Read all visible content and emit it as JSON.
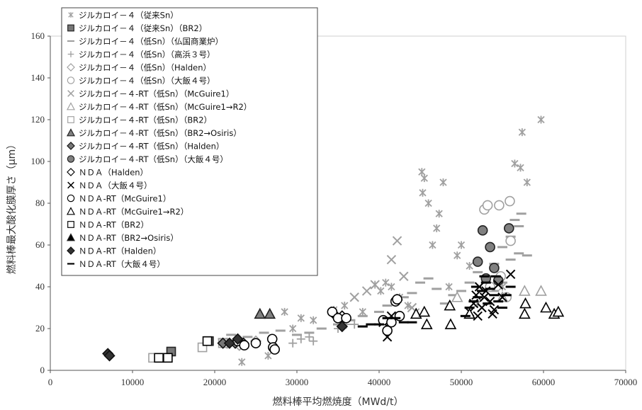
{
  "chart_data": {
    "type": "scatter",
    "xlabel": "燃料棒平均燃焼度（MWd/t）",
    "ylabel": "燃料棒最大酸化膜厚さ（μm）",
    "xlim": [
      0,
      70000
    ],
    "ylim": [
      0,
      160
    ],
    "xticks": [
      0,
      10000,
      20000,
      30000,
      40000,
      50000,
      60000,
      70000
    ],
    "yticks": [
      0,
      20,
      40,
      60,
      80,
      100,
      120,
      140,
      160
    ],
    "xtick_labels": [
      "0",
      "10000",
      "20000",
      "30000",
      "40000",
      "50000",
      "60000",
      "70000"
    ],
    "ytick_labels": [
      "0",
      "20",
      "40",
      "60",
      "80",
      "100",
      "120",
      "140",
      "160"
    ],
    "grid": false,
    "legend_position": "top-left",
    "series": [
      {
        "name": "ジルカロイ－４（従来Sn）",
        "marker": "asterisk",
        "color": "#a0a0a0",
        "points": [
          [
            23300,
            4
          ],
          [
            26500,
            7
          ],
          [
            28500,
            28
          ],
          [
            29500,
            20
          ],
          [
            30500,
            25
          ],
          [
            32000,
            24
          ],
          [
            34500,
            29
          ],
          [
            35800,
            31
          ],
          [
            38000,
            28
          ],
          [
            39500,
            41
          ],
          [
            40200,
            38
          ],
          [
            40800,
            42
          ],
          [
            41500,
            40
          ],
          [
            42500,
            35
          ],
          [
            43500,
            31
          ],
          [
            44500,
            28
          ],
          [
            45200,
            95
          ],
          [
            45500,
            92
          ],
          [
            45300,
            85
          ],
          [
            46000,
            80
          ],
          [
            46500,
            60
          ],
          [
            47000,
            68
          ],
          [
            47300,
            75
          ],
          [
            47800,
            90
          ],
          [
            48500,
            40
          ],
          [
            49500,
            55
          ],
          [
            50000,
            60
          ],
          [
            51000,
            50
          ],
          [
            52000,
            32
          ],
          [
            55000,
            40
          ],
          [
            56500,
            99
          ],
          [
            57200,
            97
          ],
          [
            57400,
            114
          ],
          [
            58000,
            90
          ],
          [
            59700,
            120
          ]
        ]
      },
      {
        "name": "ジルカロイ－４（従来Sn）（BR2）",
        "marker": "square",
        "color": "#777777",
        "filled": true,
        "points": [
          [
            14700,
            9
          ],
          [
            19300,
            14
          ]
        ]
      },
      {
        "name": "ジルカロイ－４（低Sn）（仏国商業炉）",
        "marker": "dash",
        "color": "#a0a0a0",
        "points": [
          [
            21000,
            15
          ],
          [
            22000,
            17
          ],
          [
            24000,
            16
          ],
          [
            26000,
            18
          ],
          [
            28000,
            19
          ],
          [
            30000,
            17
          ],
          [
            31500,
            18
          ],
          [
            33000,
            20
          ],
          [
            35000,
            22
          ],
          [
            36500,
            24
          ],
          [
            38000,
            26
          ],
          [
            40000,
            28
          ],
          [
            41000,
            31
          ],
          [
            42000,
            33
          ],
          [
            43000,
            35
          ],
          [
            44000,
            37
          ],
          [
            45000,
            42
          ],
          [
            46000,
            44
          ],
          [
            47000,
            39
          ],
          [
            48000,
            32
          ],
          [
            49000,
            36
          ],
          [
            50000,
            38
          ],
          [
            51000,
            42
          ],
          [
            52000,
            47
          ],
          [
            53000,
            45
          ],
          [
            54000,
            51
          ],
          [
            55000,
            59
          ],
          [
            56000,
            64
          ],
          [
            56500,
            72
          ],
          [
            57000,
            69
          ],
          [
            57300,
            75
          ],
          [
            57000,
            56
          ],
          [
            56000,
            53
          ],
          [
            58000,
            55
          ],
          [
            55000,
            42
          ],
          [
            54000,
            38
          ]
        ]
      },
      {
        "name": "ジルカロイ－４（低Sn）（高浜３号）",
        "marker": "plus",
        "color": "#a0a0a0",
        "points": [
          [
            29500,
            13
          ],
          [
            30500,
            15
          ],
          [
            31500,
            16
          ],
          [
            32000,
            14
          ],
          [
            35000,
            20
          ],
          [
            36000,
            22
          ],
          [
            37000,
            22
          ]
        ]
      },
      {
        "name": "ジルカロイ－４（低Sn）（Halden）",
        "marker": "diamond",
        "color": "#a0a0a0",
        "points": [
          [
            21500,
            13
          ],
          [
            23000,
            12
          ],
          [
            25000,
            14
          ]
        ]
      },
      {
        "name": "ジルカロイ－４（低Sn）（大飯４号）",
        "marker": "circle",
        "color": "#a0a0a0",
        "points": [
          [
            52800,
            77
          ],
          [
            53200,
            79
          ],
          [
            54600,
            79
          ],
          [
            55900,
            81
          ],
          [
            56000,
            62
          ],
          [
            54800,
            45
          ],
          [
            55500,
            35
          ],
          [
            53500,
            40
          ]
        ]
      },
      {
        "name": "ジルカロイ－４-RT（低Sn）（McGuire1）",
        "marker": "x",
        "color": "#a0a0a0",
        "points": [
          [
            37000,
            35
          ],
          [
            38500,
            38
          ],
          [
            39500,
            41
          ],
          [
            41500,
            53
          ],
          [
            42200,
            62
          ],
          [
            43000,
            45
          ],
          [
            44000,
            30
          ]
        ]
      },
      {
        "name": "ジルカロイ－４-RT（低Sn）（McGuire1→R2）",
        "marker": "triangle",
        "color": "#a0a0a0",
        "points": [
          [
            49500,
            35
          ],
          [
            55000,
            35
          ],
          [
            57700,
            38
          ],
          [
            59700,
            38
          ]
        ]
      },
      {
        "name": "ジルカロイ－４-RT（低Sn）（BR2）",
        "marker": "square",
        "color": "#a0a0a0",
        "points": [
          [
            12500,
            6
          ],
          [
            13500,
            6
          ],
          [
            18500,
            11
          ],
          [
            21000,
            13
          ]
        ]
      },
      {
        "name": "ジルカロイ－４-RT（低Sn）（BR2→Osiris）",
        "marker": "triangle",
        "color": "#808080",
        "filled": true,
        "points": [
          [
            25500,
            27
          ],
          [
            26700,
            27
          ]
        ]
      },
      {
        "name": "ジルカロイ－４-RT（低Sn）（Halden）",
        "marker": "diamond",
        "color": "#777777",
        "filled": true,
        "points": [
          [
            21000,
            13
          ],
          [
            22500,
            13
          ],
          [
            23500,
            13
          ],
          [
            35500,
            21
          ]
        ]
      },
      {
        "name": "ジルカロイ－４-RT（低Sn）（大飯４号）",
        "marker": "circle",
        "color": "#808080",
        "filled": true,
        "points": [
          [
            52000,
            52
          ],
          [
            52600,
            67
          ],
          [
            53500,
            59
          ],
          [
            54000,
            49
          ],
          [
            55800,
            68
          ],
          [
            53000,
            44
          ],
          [
            54500,
            43
          ]
        ]
      },
      {
        "name": "ＮＤＡ（Halden）",
        "marker": "diamond",
        "color": "#000000",
        "points": [
          [
            34500,
            27
          ],
          [
            35500,
            26
          ]
        ]
      },
      {
        "name": "ＮＤＡ（大飯４号）",
        "marker": "x",
        "color": "#000000",
        "points": [
          [
            40500,
            23
          ],
          [
            41000,
            16
          ],
          [
            41500,
            26
          ],
          [
            51000,
            28
          ],
          [
            51500,
            32
          ],
          [
            52000,
            26
          ],
          [
            52500,
            30
          ],
          [
            52800,
            35
          ],
          [
            53000,
            38
          ],
          [
            53500,
            33
          ],
          [
            54000,
            29
          ],
          [
            54500,
            41
          ],
          [
            55000,
            35
          ],
          [
            56000,
            46
          ],
          [
            52200,
            40
          ],
          [
            53800,
            27
          ],
          [
            51800,
            36
          ]
        ]
      },
      {
        "name": "ＮＤＡ-RT（McGuire1）",
        "marker": "circle",
        "color": "#000000",
        "points": [
          [
            22800,
            14
          ],
          [
            23600,
            12
          ],
          [
            25000,
            13
          ],
          [
            27000,
            15
          ],
          [
            27100,
            11
          ],
          [
            27300,
            10
          ],
          [
            34300,
            28
          ],
          [
            35000,
            25
          ],
          [
            36000,
            25
          ],
          [
            40500,
            24
          ],
          [
            41000,
            19
          ],
          [
            41500,
            23
          ],
          [
            42000,
            33
          ],
          [
            42200,
            34
          ],
          [
            42500,
            26
          ]
        ]
      },
      {
        "name": "ＮＤＡ-RT（McGuire1→R2）",
        "marker": "triangle",
        "color": "#000000",
        "points": [
          [
            44500,
            27
          ],
          [
            45500,
            28
          ],
          [
            45800,
            22
          ],
          [
            48600,
            31
          ],
          [
            48700,
            22
          ],
          [
            51000,
            27
          ],
          [
            57700,
            27
          ],
          [
            57800,
            32
          ],
          [
            60300,
            30
          ],
          [
            61300,
            27
          ],
          [
            61800,
            28
          ]
        ]
      },
      {
        "name": "ＮＤＡ-RT（BR2）",
        "marker": "square",
        "color": "#000000",
        "points": [
          [
            13200,
            6
          ],
          [
            14300,
            6
          ],
          [
            19100,
            14
          ]
        ]
      },
      {
        "name": "ＮＤＡ-RT（BR2→Osiris）",
        "marker": "triangle",
        "color": "#000000",
        "filled": true,
        "points": []
      },
      {
        "name": "ＮＤＡ-RT（Halden）",
        "marker": "diamond",
        "color": "#333333",
        "filled": true,
        "points": [
          [
            7000,
            8
          ],
          [
            7200,
            7
          ],
          [
            21800,
            13
          ],
          [
            22800,
            15
          ],
          [
            35500,
            21
          ]
        ]
      },
      {
        "name": "ＮＤＡ-RT（大飯４号）",
        "marker": "dash",
        "color": "#000000",
        "points": [
          [
            38000,
            21
          ],
          [
            39000,
            22
          ],
          [
            40000,
            22
          ],
          [
            41000,
            25
          ],
          [
            42000,
            25
          ],
          [
            43000,
            23
          ],
          [
            44000,
            23
          ],
          [
            50500,
            26
          ],
          [
            51000,
            30
          ],
          [
            51500,
            33
          ],
          [
            52000,
            35
          ],
          [
            52500,
            38
          ],
          [
            53000,
            42
          ],
          [
            53500,
            39
          ],
          [
            54000,
            36
          ],
          [
            54500,
            33
          ],
          [
            55000,
            30
          ],
          [
            55500,
            36
          ],
          [
            56000,
            40
          ],
          [
            52800,
            45
          ],
          [
            53200,
            32
          ],
          [
            51800,
            40
          ],
          [
            54200,
            45
          ]
        ]
      }
    ]
  }
}
